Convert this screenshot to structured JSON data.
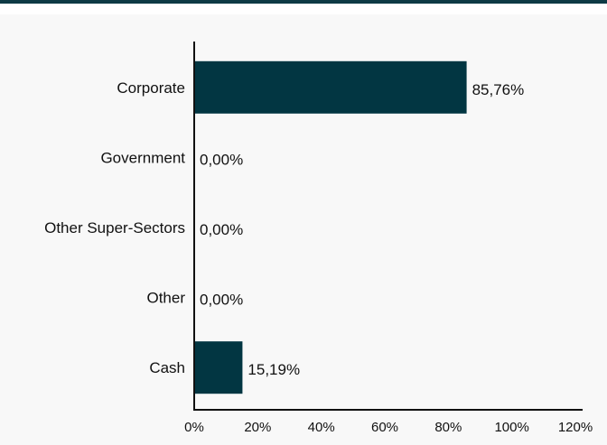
{
  "chart_data": {
    "type": "bar",
    "orientation": "horizontal",
    "categories": [
      "Corporate",
      "Government",
      "Other Super-Sectors",
      "Other",
      "Cash"
    ],
    "values": [
      85.76,
      0.0,
      0.0,
      0.0,
      15.19
    ],
    "value_labels": [
      "85,76%",
      "0,00%",
      "0,00%",
      "0,00%",
      "15,19%"
    ],
    "xlim": [
      0,
      120
    ],
    "xticks": [
      0,
      20,
      40,
      60,
      80,
      100,
      120
    ],
    "xtick_labels": [
      "0%",
      "20%",
      "40%",
      "60%",
      "80%",
      "100%",
      "120%"
    ],
    "bar_color": "#023642",
    "grid": false,
    "legend": "none"
  }
}
